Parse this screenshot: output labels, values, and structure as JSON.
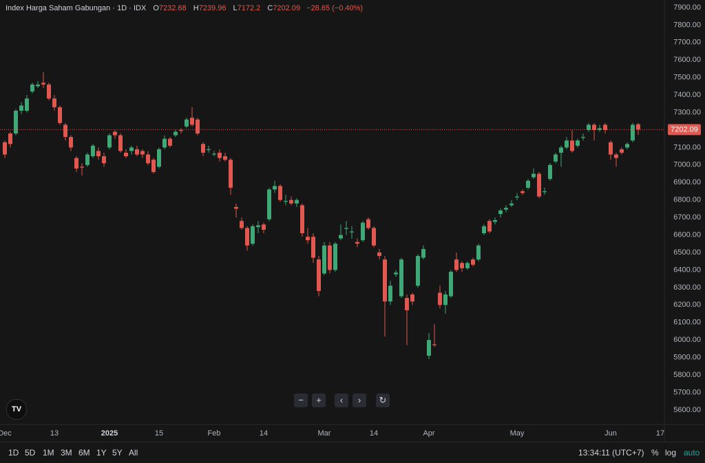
{
  "chart_data": {
    "type": "candlestick",
    "title": "Index Harga Saham Gabungan",
    "interval": "1D",
    "exchange": "IDX",
    "ohlc_letters": [
      "O",
      "H",
      "L",
      "C"
    ],
    "change": "−28.65 (−0.40%)",
    "up_color": "#3fa876",
    "down_color": "#e0584f",
    "open": [
      7130,
      7180,
      7180,
      7310,
      7310,
      7420,
      7450,
      7470,
      7460,
      7380,
      7330,
      7230,
      7160,
      7040,
      6990,
      7000,
      7050,
      7080,
      7050,
      7100,
      7190,
      7170,
      7070,
      7080,
      7090,
      7080,
      7060,
      7030,
      6990,
      7100,
      7150,
      7170,
      7200,
      7220,
      7270,
      7260,
      7120,
      7085,
      7060,
      7070,
      7050,
      7030,
      6760,
      6680,
      6640,
      6550,
      6645,
      6660,
      6690,
      6860,
      6880,
      6790,
      6800,
      6780,
      6770,
      6590,
      6590,
      6460,
      6380,
      6540,
      6400,
      6580,
      6635,
      6615,
      6560,
      6570,
      6690,
      6640,
      6500,
      6460,
      6220,
      6375,
      6250,
      6240,
      6260,
      6310,
      6470,
      5910,
      5975,
      6270,
      6200,
      6250,
      6460,
      6440,
      6410,
      6460,
      6460,
      6610,
      6680,
      6675,
      6720,
      6745,
      6770,
      6815,
      6850,
      6870,
      6930,
      6950,
      6845,
      6920,
      7020,
      7070,
      7100,
      7140,
      7110,
      7155,
      7200,
      7230,
      7200,
      7230,
      7130,
      7060,
      7090,
      7100,
      7140,
      7232.68
    ],
    "high": [
      7140,
      7190,
      7320,
      7360,
      7400,
      7470,
      7480,
      7530,
      7470,
      7400,
      7340,
      7240,
      7170,
      7050,
      7010,
      7070,
      7120,
      7100,
      7070,
      7180,
      7200,
      7180,
      7090,
      7110,
      7110,
      7090,
      7080,
      7040,
      7100,
      7170,
      7160,
      7200,
      7210,
      7270,
      7330,
      7270,
      7130,
      7110,
      7080,
      7090,
      7070,
      7040,
      6780,
      6700,
      6650,
      6660,
      6680,
      6670,
      6870,
      6910,
      6890,
      6830,
      6820,
      6810,
      6780,
      6640,
      6610,
      6480,
      6560,
      6560,
      6560,
      6660,
      6680,
      6650,
      6580,
      6680,
      6700,
      6650,
      6520,
      6480,
      6340,
      6400,
      6470,
      6260,
      6270,
      6490,
      6540,
      6040,
      6090,
      6310,
      6280,
      6400,
      6500,
      6450,
      6450,
      6470,
      6550,
      6660,
      6690,
      6700,
      6750,
      6770,
      6800,
      6840,
      6860,
      6920,
      6980,
      6960,
      6870,
      7010,
      7070,
      7110,
      7160,
      7200,
      7150,
      7180,
      7240,
      7240,
      7230,
      7240,
      7140,
      7070,
      7100,
      7130,
      7240,
      7239.96
    ],
    "low": [
      7040,
      7100,
      7170,
      7290,
      7300,
      7410,
      7440,
      7440,
      7370,
      7310,
      7230,
      7140,
      7080,
      6960,
      6940,
      6990,
      7040,
      7030,
      6990,
      7090,
      7150,
      7070,
      7040,
      7060,
      7050,
      7040,
      7000,
      6950,
      6980,
      7090,
      7100,
      7160,
      7180,
      7210,
      7220,
      7170,
      7050,
      7070,
      7050,
      7020,
      7020,
      6830,
      6700,
      6630,
      6510,
      6540,
      6610,
      6610,
      6680,
      6840,
      6790,
      6770,
      6770,
      6760,
      6590,
      6550,
      6440,
      6250,
      6370,
      6380,
      6390,
      6570,
      6600,
      6580,
      6530,
      6560,
      6630,
      6530,
      6460,
      6020,
      6200,
      6360,
      6240,
      5970,
      6200,
      6300,
      6460,
      5890,
      5960,
      6180,
      6150,
      6240,
      6390,
      6390,
      6400,
      6420,
      6450,
      6600,
      6610,
      6660,
      6700,
      6730,
      6760,
      6800,
      6830,
      6860,
      6920,
      6810,
      6830,
      6910,
      7010,
      6990,
      7090,
      7070,
      7100,
      7140,
      7190,
      7140,
      7190,
      7180,
      7030,
      6990,
      7060,
      7090,
      7130,
      7172.2
    ],
    "close": [
      7060,
      7120,
      7310,
      7340,
      7380,
      7460,
      7460,
      7460,
      7380,
      7330,
      7240,
      7160,
      7100,
      6980,
      6985,
      7060,
      7110,
      7050,
      7010,
      7170,
      7170,
      7080,
      7050,
      7100,
      7060,
      7060,
      7010,
      6960,
      7090,
      7150,
      7110,
      7190,
      7195,
      7260,
      7230,
      7180,
      7070,
      7090,
      7065,
      7040,
      7030,
      6870,
      6750,
      6640,
      6540,
      6650,
      6655,
      6630,
      6860,
      6880,
      6800,
      6795,
      6780,
      6800,
      6610,
      6570,
      6470,
      6280,
      6540,
      6400,
      6550,
      6600,
      6640,
      6620,
      6550,
      6670,
      6640,
      6540,
      6480,
      6220,
      6310,
      6385,
      6460,
      6170,
      6220,
      6480,
      6520,
      6000,
      5970,
      6200,
      6260,
      6390,
      6400,
      6410,
      6440,
      6430,
      6540,
      6650,
      6620,
      6685,
      6740,
      6755,
      6780,
      6820,
      6840,
      6910,
      6950,
      6820,
      6850,
      7000,
      7060,
      7100,
      7140,
      7080,
      7140,
      7160,
      7230,
      7200,
      7210,
      7200,
      7060,
      7040,
      7070,
      7120,
      7230,
      7202.09
    ],
    "xlim": [
      -0.875,
      119.75
    ],
    "xticks": [
      {
        "value": 0,
        "label": "Dec"
      },
      {
        "value": 9,
        "label": "13"
      },
      {
        "value": 19,
        "label": "2025"
      },
      {
        "value": 28,
        "label": "15"
      },
      {
        "value": 38,
        "label": "Feb"
      },
      {
        "value": 47,
        "label": "14"
      },
      {
        "value": 58,
        "label": "Mar"
      },
      {
        "value": 67,
        "label": "14"
      },
      {
        "value": 77,
        "label": "Apr"
      },
      {
        "value": 93,
        "label": "May"
      },
      {
        "value": 110,
        "label": "Jun"
      },
      {
        "value": 119,
        "label": "17"
      }
    ],
    "ylim": [
      5517,
      7943
    ],
    "yticks": [
      {
        "value": 5600,
        "label": "5600.00"
      },
      {
        "value": 5700,
        "label": "5700.00"
      },
      {
        "value": 5800,
        "label": "5800.00"
      },
      {
        "value": 5900,
        "label": "5900.00"
      },
      {
        "value": 6000,
        "label": "6000.00"
      },
      {
        "value": 6100,
        "label": "6100.00"
      },
      {
        "value": 6200,
        "label": "6200.00"
      },
      {
        "value": 6300,
        "label": "6300.00"
      },
      {
        "value": 6400,
        "label": "6400.00"
      },
      {
        "value": 6500,
        "label": "6500.00"
      },
      {
        "value": 6600,
        "label": "6600.00"
      },
      {
        "value": 6700,
        "label": "6700.00"
      },
      {
        "value": 6800,
        "label": "6800.00"
      },
      {
        "value": 6900,
        "label": "6900.00"
      },
      {
        "value": 7000,
        "label": "7000.00"
      },
      {
        "value": 7100,
        "label": "7100.00"
      },
      {
        "value": 7200,
        "label": "7200.00"
      },
      {
        "value": 7300,
        "label": "7300.00"
      },
      {
        "value": 7400,
        "label": "7400.00"
      },
      {
        "value": 7500,
        "label": "7500.00"
      },
      {
        "value": 7600,
        "label": "7600.00"
      },
      {
        "value": 7700,
        "label": "7700.00"
      },
      {
        "value": 7800,
        "label": "7800.00"
      },
      {
        "value": 7900,
        "label": "7900.00"
      }
    ],
    "grid": false
  },
  "toolbar": {
    "ranges": [
      "1D",
      "5D",
      "1M",
      "3M",
      "6M",
      "1Y",
      "5Y",
      "All"
    ],
    "time": "13:34:11 (UTC+7)",
    "percent": "%",
    "log": "log",
    "auto": "auto"
  }
}
